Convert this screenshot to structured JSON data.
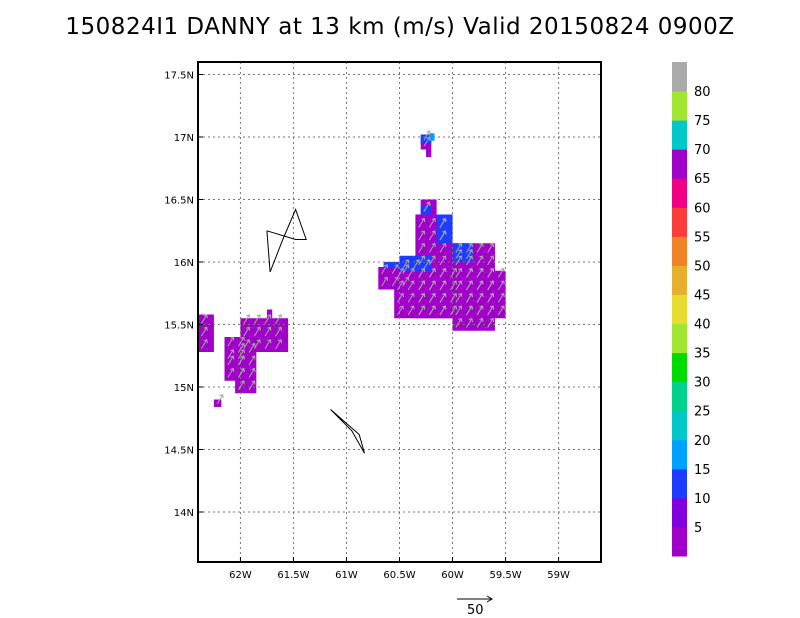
{
  "chart_data": {
    "type": "heatmap",
    "title": "150824I1 DANNY at 13 km (m/s) Valid 20150824 0900Z",
    "xlabel": "",
    "ylabel": "",
    "xlim": [
      -62.4,
      -58.6
    ],
    "ylim": [
      13.6,
      17.6
    ],
    "x_ticks": [
      {
        "value": -62.0,
        "label": "62W"
      },
      {
        "value": -61.5,
        "label": "61.5W"
      },
      {
        "value": -61.0,
        "label": "61W"
      },
      {
        "value": -60.5,
        "label": "60.5W"
      },
      {
        "value": -60.0,
        "label": "60W"
      },
      {
        "value": -59.5,
        "label": "59.5W"
      },
      {
        "value": -59.0,
        "label": "59W"
      }
    ],
    "y_ticks": [
      {
        "value": 14.0,
        "label": "14N"
      },
      {
        "value": 14.5,
        "label": "14.5N"
      },
      {
        "value": 15.0,
        "label": "15N"
      },
      {
        "value": 15.5,
        "label": "15.5N"
      },
      {
        "value": 16.0,
        "label": "16N"
      },
      {
        "value": 16.5,
        "label": "16.5N"
      },
      {
        "value": 17.0,
        "label": "17N"
      },
      {
        "value": 17.5,
        "label": "17.5N"
      }
    ],
    "grid": true,
    "colorbar": {
      "ticks": [
        "5",
        "10",
        "15",
        "20",
        "25",
        "30",
        "35",
        "40",
        "45",
        "50",
        "55",
        "60",
        "65",
        "70",
        "75",
        "80"
      ],
      "colors": [
        "#a000c8",
        "#8200dc",
        "#1e3cff",
        "#00a0ff",
        "#00c8c8",
        "#00d28c",
        "#00dc00",
        "#a0e632",
        "#e6dc32",
        "#e6af2d",
        "#f08228",
        "#fa3c3c",
        "#f00082",
        "#a000c8",
        "#00c8c8",
        "#a0e632",
        "#aaaaaa"
      ]
    },
    "cell_size_deg": 0.05,
    "regions": [
      {
        "lon": [
          -62.4,
          -62.25
        ],
        "lat": [
          15.28,
          15.58
        ],
        "value": 2
      },
      {
        "lon": [
          -62.15,
          -61.95
        ],
        "lat": [
          15.2,
          15.4
        ],
        "value": 2
      },
      {
        "lon": [
          -62.15,
          -61.95
        ],
        "lat": [
          15.05,
          15.25
        ],
        "value": 2
      },
      {
        "lon": [
          -62.0,
          -61.55
        ],
        "lat": [
          15.28,
          15.55
        ],
        "value": 2
      },
      {
        "lon": [
          -62.05,
          -61.85
        ],
        "lat": [
          14.95,
          15.3
        ],
        "value": 2
      },
      {
        "lon": [
          -61.75,
          -61.7
        ],
        "lat": [
          15.55,
          15.62
        ],
        "value": 2
      },
      {
        "lon": [
          -62.25,
          -62.18
        ],
        "lat": [
          14.84,
          14.9
        ],
        "value": 2
      },
      {
        "lon": [
          -60.7,
          -60.35
        ],
        "lat": [
          15.78,
          15.96
        ],
        "value": 2
      },
      {
        "lon": [
          -60.55,
          -59.95
        ],
        "lat": [
          15.55,
          15.96
        ],
        "value": 2
      },
      {
        "lon": [
          -60.35,
          -60.0
        ],
        "lat": [
          15.55,
          16.38
        ],
        "value": 2
      },
      {
        "lon": [
          -60.3,
          -60.15
        ],
        "lat": [
          16.38,
          16.5
        ],
        "value": 2
      },
      {
        "lon": [
          -60.0,
          -59.6
        ],
        "lat": [
          15.45,
          16.15
        ],
        "value": 2
      },
      {
        "lon": [
          -59.9,
          -59.5
        ],
        "lat": [
          15.55,
          15.93
        ],
        "value": 2
      },
      {
        "lon": [
          -60.5,
          -60.2
        ],
        "lat": [
          15.92,
          16.05
        ],
        "value": 12
      },
      {
        "lon": [
          -60.65,
          -60.45
        ],
        "lat": [
          15.95,
          16.0
        ],
        "value": 12
      },
      {
        "lon": [
          -60.15,
          -60.0
        ],
        "lat": [
          16.15,
          16.38
        ],
        "value": 12
      },
      {
        "lon": [
          -60.0,
          -59.8
        ],
        "lat": [
          16.0,
          16.15
        ],
        "value": 12
      },
      {
        "lon": [
          -60.3,
          -60.2
        ],
        "lat": [
          16.38,
          16.45
        ],
        "value": 12
      },
      {
        "lon": [
          -60.3,
          -60.2
        ],
        "lat": [
          16.9,
          17.0
        ],
        "value": 2
      },
      {
        "lon": [
          -60.25,
          -60.2
        ],
        "lat": [
          16.84,
          16.9
        ],
        "value": 2
      },
      {
        "lon": [
          -60.3,
          -60.2
        ],
        "lat": [
          16.95,
          17.02
        ],
        "value": 12
      },
      {
        "lon": [
          -60.22,
          -60.17
        ],
        "lat": [
          16.97,
          17.03
        ],
        "value": 18
      }
    ],
    "coastlines": [
      [
        [
          -61.75,
          16.25
        ],
        [
          -61.48,
          16.18
        ],
        [
          -61.38,
          16.18
        ],
        [
          -61.48,
          16.42
        ],
        [
          -61.6,
          16.18
        ],
        [
          -61.72,
          15.92
        ],
        [
          -61.75,
          16.25
        ]
      ],
      [
        [
          -61.15,
          14.82
        ],
        [
          -60.95,
          14.65
        ],
        [
          -60.83,
          14.47
        ],
        [
          -60.88,
          14.62
        ],
        [
          -61.15,
          14.82
        ]
      ]
    ],
    "reference_vector": {
      "magnitude": 50,
      "label": "50"
    }
  }
}
